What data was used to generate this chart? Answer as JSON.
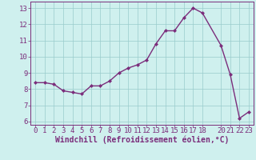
{
  "x": [
    0,
    1,
    2,
    3,
    4,
    5,
    6,
    7,
    8,
    9,
    10,
    11,
    12,
    13,
    14,
    15,
    16,
    17,
    18,
    20,
    21,
    22,
    23
  ],
  "y": [
    8.4,
    8.4,
    8.3,
    7.9,
    7.8,
    7.7,
    8.2,
    8.2,
    8.5,
    9.0,
    9.3,
    9.5,
    9.8,
    10.8,
    11.6,
    11.6,
    12.4,
    13.0,
    12.7,
    10.7,
    8.9,
    6.2,
    6.6
  ],
  "line_color": "#7b2d7b",
  "marker": "D",
  "marker_size": 2.0,
  "background_color": "#cff0ee",
  "grid_color": "#99cccc",
  "xlabel": "Windchill (Refroidissement éolien,°C)",
  "xlabel_fontsize": 7,
  "ylim": [
    5.8,
    13.4
  ],
  "xlim": [
    -0.5,
    23.5
  ],
  "yticks": [
    6,
    7,
    8,
    9,
    10,
    11,
    12,
    13
  ],
  "xticks": [
    0,
    1,
    2,
    3,
    4,
    5,
    6,
    7,
    8,
    9,
    10,
    11,
    12,
    13,
    14,
    15,
    16,
    17,
    18,
    20,
    21,
    22,
    23
  ],
  "tick_fontsize": 6.5,
  "line_width": 1.0,
  "spine_color": "#7b2d7b"
}
